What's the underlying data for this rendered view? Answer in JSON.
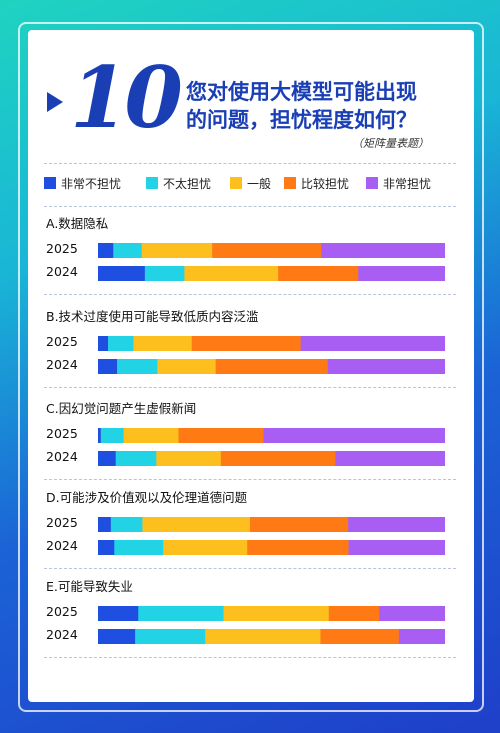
{
  "header": {
    "number": "10",
    "question_line1": "您对使用大模型可能出现",
    "question_line2": "的问题，担忧程度如何？",
    "subtitle": "（矩阵量表题）"
  },
  "chart_data": {
    "type": "bar",
    "stacked": true,
    "orientation": "horizontal",
    "legend": [
      {
        "name": "非常不担忧",
        "color": "#1f4fe0"
      },
      {
        "name": "不太担忧",
        "color": "#22d3e6"
      },
      {
        "name": "一般",
        "color": "#fcbf1e"
      },
      {
        "name": "比较担忧",
        "color": "#ff7a14"
      },
      {
        "name": "非常担忧",
        "color": "#a85ef2"
      }
    ],
    "groups": [
      {
        "title": "A.数据隐私",
        "rows": [
          {
            "year": "2025",
            "values": [
              4.4,
              8.2,
              20.3,
              31.4,
              35.7
            ]
          },
          {
            "year": "2024",
            "values": [
              13.5,
              11.4,
              27.0,
              23.1,
              25.0
            ]
          }
        ]
      },
      {
        "title": "B.技术过度使用可能导致低质内容泛滥",
        "rows": [
          {
            "year": "2025",
            "values": [
              2.9,
              7.3,
              16.8,
              31.4,
              41.6
            ]
          },
          {
            "year": "2024",
            "values": [
              5.5,
              11.6,
              16.8,
              32.3,
              33.8
            ]
          }
        ]
      },
      {
        "title": "C.因幻觉问题产生虚假新闻",
        "rows": [
          {
            "year": "2025",
            "values": [
              0.8,
              6.6,
              15.8,
              24.5,
              52.3
            ]
          },
          {
            "year": "2024",
            "values": [
              5.1,
              11.7,
              18.6,
              33.0,
              31.6
            ]
          }
        ]
      },
      {
        "title": "D.可能涉及价值观以及伦理道德问题",
        "rows": [
          {
            "year": "2025",
            "values": [
              3.7,
              9.1,
              31.0,
              28.3,
              27.9
            ]
          },
          {
            "year": "2024",
            "values": [
              4.7,
              14.1,
              24.2,
              29.2,
              27.8
            ]
          }
        ]
      },
      {
        "title": "E.可能导致失业",
        "rows": [
          {
            "year": "2025",
            "values": [
              11.6,
              24.6,
              30.3,
              14.5,
              19.0
            ]
          },
          {
            "year": "2024",
            "values": [
              10.7,
              20.2,
              33.2,
              22.6,
              13.3
            ]
          }
        ]
      }
    ]
  }
}
